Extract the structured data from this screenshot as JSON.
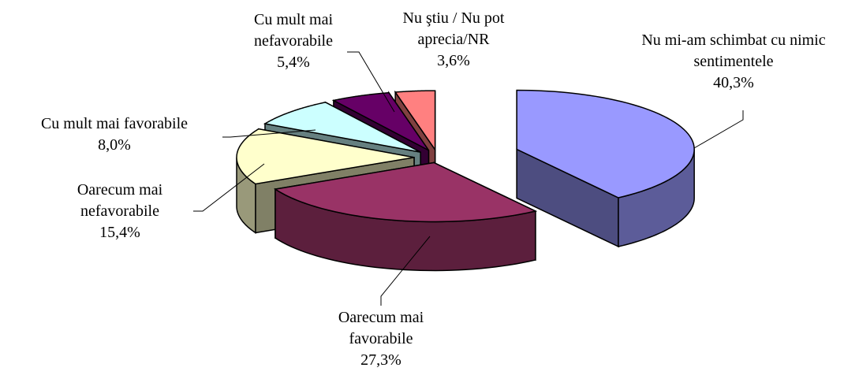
{
  "chart_data": {
    "type": "pie3d",
    "categories": [
      "Nu mi-am schimbat cu nimic sentimentele",
      "Oarecum mai favorabile",
      "Oarecum mai nefavorabile",
      "Cu mult mai favorabile",
      "Cu mult mai nefavorabile",
      "Nu ştiu / Nu pot aprecia/NR"
    ],
    "values": [
      40.3,
      27.3,
      15.4,
      8.0,
      5.4,
      3.6
    ],
    "value_labels": [
      "40,3%",
      "27,3%",
      "15,4%",
      "8,0%",
      "5,4%",
      "3,6%"
    ],
    "colors": [
      "#9999ff",
      "#993366",
      "#ffffcc",
      "#ccffff",
      "#660066",
      "#ff8080"
    ]
  }
}
